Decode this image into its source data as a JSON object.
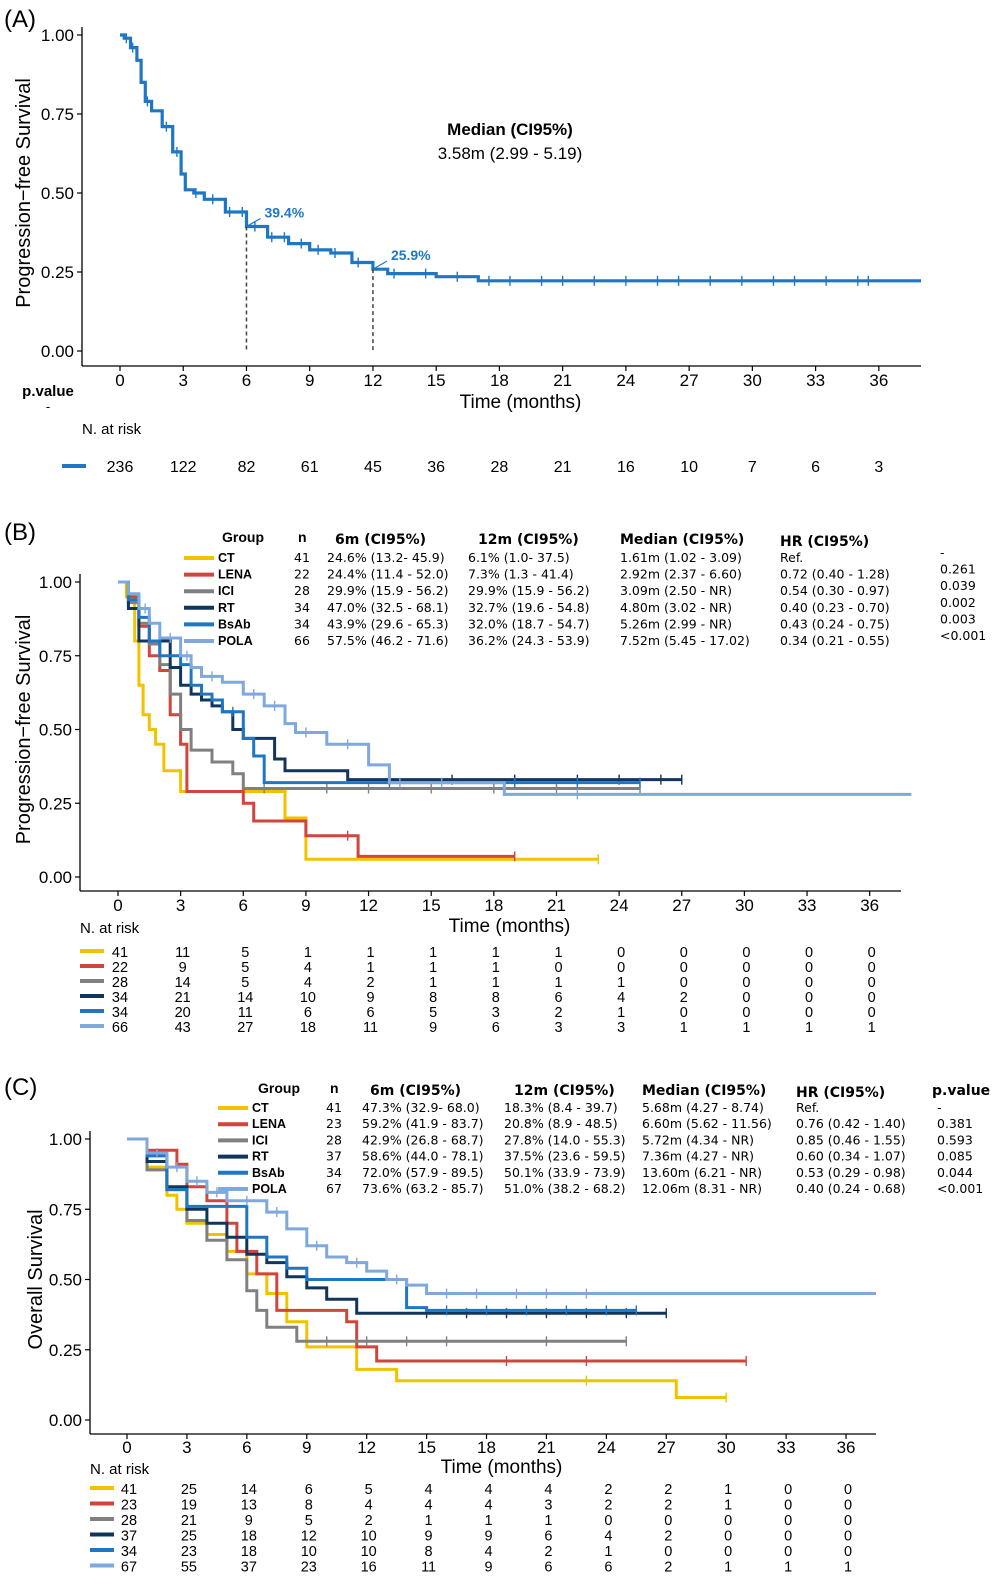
{
  "chart_data": [
    {
      "type": "line",
      "panel_label": "(A)",
      "ylabel": "Progression−free Survival",
      "xlabel": "Time (months)",
      "xlim": [
        0,
        37.5
      ],
      "ylim": [
        0,
        1
      ],
      "x_ticks": [
        "0",
        "3",
        "6",
        "9",
        "12",
        "15",
        "18",
        "21",
        "24",
        "27",
        "30",
        "33",
        "36"
      ],
      "y_ticks": [
        "0.00",
        "0.25",
        "0.50",
        "0.75",
        "1.00"
      ],
      "median_title": "Median (CI95%)",
      "median_value": "3.58m (2.99 - 5.19)",
      "annotations": [
        {
          "x": 6,
          "y": 0.394,
          "text": "39.4%"
        },
        {
          "x": 12,
          "y": 0.259,
          "text": "25.9%"
        }
      ],
      "pvalue_label": "p.value",
      "pvalue_value": "-",
      "risk_title": "N. at risk",
      "series": [
        {
          "color": "#1f77c4",
          "x": [
            0,
            0.2,
            0.5,
            0.8,
            1.0,
            1.2,
            1.5,
            2.0,
            2.5,
            2.9,
            3.1,
            3.5,
            4.0,
            5.0,
            6.0,
            7.0,
            8.0,
            9.0,
            10.0,
            11.0,
            12.0,
            12.7,
            15.0,
            17.0,
            38
          ],
          "y": [
            1.0,
            0.99,
            0.96,
            0.92,
            0.85,
            0.79,
            0.76,
            0.71,
            0.63,
            0.56,
            0.51,
            0.5,
            0.48,
            0.44,
            0.394,
            0.36,
            0.34,
            0.32,
            0.31,
            0.28,
            0.259,
            0.245,
            0.235,
            0.222,
            0.222
          ],
          "censor_x": [
            0.3,
            0.6,
            1.3,
            2.2,
            2.7,
            3.6,
            4.4,
            5.2,
            5.8,
            6.4,
            7.2,
            7.8,
            8.6,
            9.4,
            10.2,
            11.3,
            13.0,
            14.5,
            16.0,
            17.5,
            18.5,
            20.0,
            21.0,
            22.5,
            24.0,
            25.5,
            26.5,
            28.0,
            29.5,
            31.0,
            32.0,
            33.5,
            35.0,
            35.5
          ],
          "at_risk": [
            "236",
            "122",
            "82",
            "61",
            "45",
            "36",
            "28",
            "21",
            "16",
            "10",
            "7",
            "6",
            "3"
          ]
        }
      ]
    },
    {
      "type": "line",
      "panel_label": "(B)",
      "ylabel": "Progression−free Survival",
      "xlabel": "Time (months)",
      "xlim": [
        0,
        37.5
      ],
      "ylim": [
        0,
        1
      ],
      "x_ticks": [
        "0",
        "3",
        "6",
        "9",
        "12",
        "15",
        "18",
        "21",
        "24",
        "27",
        "30",
        "33",
        "36"
      ],
      "y_ticks": [
        "0.00",
        "0.25",
        "0.50",
        "0.75",
        "1.00"
      ],
      "risk_title": "N. at risk",
      "table_headers": {
        "group": "Group",
        "n": "n",
        "m6": "6m (CI95%)",
        "m12": "12m (CI95%)",
        "median": "Median (CI95%)",
        "hr": "HR (CI95%)",
        "p": ""
      },
      "series": [
        {
          "name": "CT",
          "color": "#f2c200",
          "n": "41",
          "m6": "24.6% (13.2- 45.9)",
          "m12": "6.1% (1.0- 37.5)",
          "median": "1.61m (1.02 - 3.09)",
          "hr": "Ref.",
          "p": "-",
          "x": [
            0,
            0.4,
            0.8,
            1.0,
            1.2,
            1.5,
            1.8,
            2.2,
            3.0,
            4.0,
            6.0,
            8.0,
            9.0,
            23.0
          ],
          "y": [
            1.0,
            0.95,
            0.8,
            0.65,
            0.55,
            0.5,
            0.45,
            0.36,
            0.29,
            0.29,
            0.29,
            0.2,
            0.06,
            0.06
          ],
          "censor_x": [
            23.0
          ],
          "at_risk": [
            "41",
            "11",
            "5",
            "1",
            "1",
            "1",
            "1",
            "1",
            "0",
            "0",
            "0",
            "0",
            "0"
          ]
        },
        {
          "name": "LENA",
          "color": "#d0463c",
          "n": "22",
          "m6": "24.4% (11.4 - 52.0)",
          "m12": "7.3% (1.3 - 41.4)",
          "median": "2.92m (2.37 - 6.60)",
          "hr": "0.72 (0.40 - 1.28)",
          "p": "0.261",
          "x": [
            0,
            0.5,
            1.0,
            1.5,
            2.0,
            2.5,
            3.0,
            3.3,
            6.0,
            6.5,
            8.0,
            9.0,
            11.5,
            19.0
          ],
          "y": [
            1.0,
            0.95,
            0.85,
            0.75,
            0.7,
            0.55,
            0.45,
            0.29,
            0.25,
            0.19,
            0.19,
            0.14,
            0.07,
            0.07
          ],
          "censor_x": [
            11.0,
            19.0
          ],
          "at_risk": [
            "22",
            "9",
            "5",
            "4",
            "1",
            "1",
            "1",
            "0",
            "0",
            "0",
            "0",
            "0",
            "0"
          ]
        },
        {
          "name": "ICI",
          "color": "#808080",
          "n": "28",
          "m6": "29.9% (15.9 - 56.2)",
          "m12": "29.9% (15.9 - 56.2)",
          "median": "3.09m (2.50 - NR)",
          "hr": "0.54 (0.30 - 0.97)",
          "p": "0.039",
          "x": [
            0,
            0.5,
            1.0,
            1.5,
            2.0,
            2.5,
            3.0,
            3.5,
            4.5,
            5.5,
            6.0,
            25.0
          ],
          "y": [
            1.0,
            0.93,
            0.86,
            0.79,
            0.72,
            0.62,
            0.5,
            0.43,
            0.39,
            0.35,
            0.3,
            0.3
          ],
          "censor_x": [
            7.0,
            10.0,
            12.0,
            15.0,
            18.0,
            21.0,
            25.0
          ],
          "at_risk": [
            "28",
            "14",
            "5",
            "4",
            "2",
            "1",
            "1",
            "1",
            "1",
            "0",
            "0",
            "0",
            "0"
          ]
        },
        {
          "name": "RT",
          "color": "#12355e",
          "n": "34",
          "m6": "47.0% (32.5 - 68.1)",
          "m12": "32.7% (19.6 - 54.8)",
          "median": "4.80m (3.02 - NR)",
          "hr": "0.40 (0.23 - 0.70)",
          "p": "0.002",
          "x": [
            0,
            0.5,
            1.0,
            2.5,
            3.0,
            3.5,
            4.0,
            4.5,
            5.0,
            5.5,
            6.0,
            7.0,
            7.5,
            8.0,
            11.0,
            27.0
          ],
          "y": [
            1.0,
            0.91,
            0.8,
            0.71,
            0.65,
            0.62,
            0.6,
            0.58,
            0.56,
            0.5,
            0.47,
            0.47,
            0.4,
            0.36,
            0.33,
            0.33
          ],
          "censor_x": [
            13.0,
            16.0,
            19.0,
            22.0,
            24.0,
            26.0,
            27.0
          ],
          "at_risk": [
            "34",
            "21",
            "14",
            "10",
            "9",
            "8",
            "8",
            "6",
            "4",
            "2",
            "0",
            "0",
            "0"
          ]
        },
        {
          "name": "BsAb",
          "color": "#1f77c4",
          "n": "34",
          "m6": "43.9% (29.6 - 65.3)",
          "m12": "32.0% (18.7 - 54.7)",
          "median": "5.26m (2.99 - NR)",
          "hr": "0.43 (0.24 - 0.75)",
          "p": "0.003",
          "x": [
            0,
            0.5,
            1.0,
            1.5,
            2.0,
            3.0,
            3.5,
            4.0,
            4.5,
            5.0,
            6.0,
            6.5,
            7.0,
            12.0,
            14.0,
            18.5,
            25.0
          ],
          "y": [
            1.0,
            0.94,
            0.88,
            0.8,
            0.75,
            0.72,
            0.65,
            0.62,
            0.6,
            0.56,
            0.47,
            0.41,
            0.32,
            0.32,
            0.32,
            0.32,
            0.32
          ],
          "censor_x": [
            5.5,
            13.0,
            19.0,
            22.0,
            25.0
          ],
          "at_risk": [
            "34",
            "20",
            "11",
            "6",
            "6",
            "5",
            "3",
            "2",
            "1",
            "0",
            "0",
            "0",
            "0"
          ]
        },
        {
          "name": "POLA",
          "color": "#7fa8dc",
          "n": "66",
          "m6": "57.5% (46.2 - 71.6)",
          "m12": "36.2% (24.3 - 53.9)",
          "median": "7.52m (5.45 - 17.02)",
          "hr": "0.34 (0.21 - 0.55)",
          "p": "<0.001",
          "x": [
            0,
            0.5,
            1.0,
            1.5,
            2.0,
            3.0,
            3.5,
            4.0,
            5.0,
            6.0,
            7.0,
            8.0,
            8.5,
            10.0,
            12.0,
            13.0,
            17.0,
            18.5,
            38
          ],
          "y": [
            1.0,
            0.96,
            0.91,
            0.86,
            0.81,
            0.75,
            0.71,
            0.68,
            0.66,
            0.62,
            0.58,
            0.52,
            0.49,
            0.45,
            0.38,
            0.32,
            0.32,
            0.28,
            0.28
          ],
          "censor_x": [
            1.3,
            2.5,
            3.3,
            4.5,
            6.5,
            7.5,
            9.0,
            11.0,
            13.5,
            15.5,
            22.0
          ],
          "at_risk": [
            "66",
            "43",
            "27",
            "18",
            "11",
            "9",
            "6",
            "3",
            "3",
            "1",
            "1",
            "1",
            "1"
          ]
        }
      ]
    },
    {
      "type": "line",
      "panel_label": "(C)",
      "ylabel": "Overall Survival",
      "xlabel": "Time (months)",
      "xlim": [
        0,
        37.5
      ],
      "ylim": [
        0,
        1
      ],
      "x_ticks": [
        "0",
        "3",
        "6",
        "9",
        "12",
        "15",
        "18",
        "21",
        "24",
        "27",
        "30",
        "33",
        "36"
      ],
      "y_ticks": [
        "0.00",
        "0.25",
        "0.50",
        "0.75",
        "1.00"
      ],
      "risk_title": "N. at risk",
      "table_headers": {
        "group": "Group",
        "n": "n",
        "m6": "6m (CI95%)",
        "m12": "12m (CI95%)",
        "median": "Median (CI95%)",
        "hr": "HR (CI95%)",
        "p": "p.value"
      },
      "series": [
        {
          "name": "CT",
          "color": "#f2c200",
          "n": "41",
          "m6": "47.3% (32.9- 68.0)",
          "m12": "18.3% (8.4 - 39.7)",
          "median": "5.68m (4.27 - 8.74)",
          "hr": "Ref.",
          "p": "-",
          "x": [
            0,
            1.0,
            2.0,
            2.5,
            3.0,
            4.0,
            5.0,
            6.0,
            7.0,
            8.0,
            9.0,
            11.5,
            13.5,
            27.5,
            30.0
          ],
          "y": [
            1.0,
            0.9,
            0.8,
            0.75,
            0.7,
            0.66,
            0.6,
            0.52,
            0.45,
            0.35,
            0.26,
            0.18,
            0.14,
            0.08,
            0.08
          ],
          "censor_x": [
            23.0,
            30.0
          ],
          "at_risk": [
            "41",
            "25",
            "14",
            "6",
            "5",
            "4",
            "4",
            "4",
            "2",
            "2",
            "1",
            "0",
            "0"
          ]
        },
        {
          "name": "LENA",
          "color": "#d0463c",
          "n": "23",
          "m6": "59.2% (41.9 - 83.7)",
          "m12": "20.8% (8.9 - 48.5)",
          "median": "6.60m (5.62 - 11.56)",
          "hr": "0.76 (0.42 - 1.40)",
          "p": "0.381",
          "x": [
            0,
            1.0,
            2.5,
            3.0,
            4.0,
            5.0,
            5.5,
            6.5,
            7.5,
            11.0,
            11.5,
            12.5,
            31.0
          ],
          "y": [
            1.0,
            0.96,
            0.91,
            0.83,
            0.78,
            0.7,
            0.6,
            0.52,
            0.39,
            0.35,
            0.26,
            0.21,
            0.21
          ],
          "censor_x": [
            19.0,
            23.0,
            31.0
          ],
          "at_risk": [
            "23",
            "19",
            "13",
            "8",
            "4",
            "4",
            "4",
            "3",
            "2",
            "2",
            "1",
            "0",
            "0"
          ]
        },
        {
          "name": "ICI",
          "color": "#808080",
          "n": "28",
          "m6": "42.9% (26.8 - 68.7)",
          "m12": "27.8% (14.0 - 55.3)",
          "median": "5.72m (4.34 - NR)",
          "hr": "0.85 (0.46 - 1.55)",
          "p": "0.593",
          "x": [
            0,
            1.0,
            2.0,
            3.0,
            4.0,
            5.0,
            6.0,
            6.5,
            7.0,
            8.5,
            25.0
          ],
          "y": [
            1.0,
            0.89,
            0.82,
            0.71,
            0.64,
            0.57,
            0.46,
            0.39,
            0.33,
            0.28,
            0.28
          ],
          "censor_x": [
            10.0,
            12.0,
            14.0,
            16.0,
            21.0,
            25.0
          ],
          "at_risk": [
            "28",
            "21",
            "9",
            "5",
            "2",
            "1",
            "1",
            "1",
            "0",
            "0",
            "0",
            "0",
            "0"
          ]
        },
        {
          "name": "RT",
          "color": "#12355e",
          "n": "37",
          "m6": "58.6% (44.0 - 78.1)",
          "m12": "37.5% (23.6 - 59.5)",
          "median": "7.36m (4.27 - NR)",
          "hr": "0.60 (0.34 - 1.07)",
          "p": "0.085",
          "x": [
            0,
            1.0,
            2.0,
            3.0,
            4.0,
            5.0,
            6.0,
            7.0,
            8.0,
            9.0,
            10.0,
            11.5,
            27.0
          ],
          "y": [
            1.0,
            0.92,
            0.83,
            0.75,
            0.7,
            0.65,
            0.59,
            0.56,
            0.51,
            0.47,
            0.43,
            0.38,
            0.38
          ],
          "censor_x": [
            15.0,
            17.0,
            19.0,
            21.0,
            23.0,
            25.0,
            27.0
          ],
          "at_risk": [
            "37",
            "25",
            "18",
            "12",
            "10",
            "9",
            "9",
            "6",
            "4",
            "2",
            "0",
            "0",
            "0"
          ]
        },
        {
          "name": "BsAb",
          "color": "#1f77c4",
          "n": "34",
          "m6": "72.0% (57.9 - 89.5)",
          "m12": "50.1% (33.9 - 73.9)",
          "median": "13.60m (6.21 - NR)",
          "hr": "0.53 (0.29 - 0.98)",
          "p": "0.044",
          "x": [
            0,
            1.0,
            2.0,
            3.0,
            4.0,
            6.0,
            7.0,
            8.0,
            9.0,
            14.0,
            15.0,
            25.5
          ],
          "y": [
            1.0,
            0.94,
            0.82,
            0.76,
            0.76,
            0.65,
            0.58,
            0.54,
            0.5,
            0.4,
            0.39,
            0.39
          ],
          "censor_x": [
            16.0,
            18.0,
            20.0,
            22.0,
            24.0,
            25.5
          ],
          "at_risk": [
            "34",
            "23",
            "18",
            "10",
            "10",
            "8",
            "4",
            "2",
            "1",
            "0",
            "0",
            "0",
            "0"
          ]
        },
        {
          "name": "POLA",
          "color": "#7fa8dc",
          "n": "67",
          "m6": "73.6% (63.2 - 85.7)",
          "m12": "51.0% (38.2 - 68.2)",
          "median": "12.06m (8.31 - NR)",
          "hr": "0.40 (0.24 - 0.68)",
          "p": "<0.001",
          "x": [
            0,
            1.0,
            2.0,
            3.0,
            4.0,
            5.0,
            7.0,
            8.0,
            9.0,
            10.0,
            11.0,
            12.0,
            13.0,
            14.0,
            15.0,
            37.5
          ],
          "y": [
            1.0,
            0.95,
            0.9,
            0.85,
            0.81,
            0.78,
            0.74,
            0.68,
            0.62,
            0.58,
            0.56,
            0.53,
            0.5,
            0.48,
            0.45,
            0.45
          ],
          "censor_x": [
            1.5,
            2.5,
            3.5,
            4.5,
            6.0,
            7.5,
            9.5,
            11.5,
            13.5,
            16.0,
            17.5,
            19.5,
            21.0,
            23.0
          ],
          "at_risk": [
            "67",
            "55",
            "37",
            "23",
            "16",
            "11",
            "9",
            "6",
            "6",
            "2",
            "1",
            "1",
            "1"
          ]
        }
      ]
    }
  ]
}
